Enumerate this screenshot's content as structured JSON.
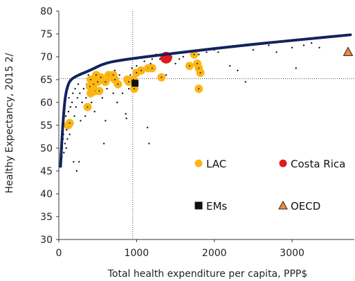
{
  "chart_data": {
    "type": "scatter",
    "xlabel": "Total health expenditure per capita, PPP$",
    "ylabel": "Healthy Expectancy, 2015 2/",
    "xlim": [
      0,
      3800
    ],
    "ylim": [
      30,
      80
    ],
    "x_ticks": [
      0,
      1000,
      2000,
      3000
    ],
    "y_ticks": [
      30,
      35,
      40,
      45,
      50,
      55,
      60,
      65,
      70,
      75,
      80
    ],
    "grid": false,
    "reference_lines": {
      "x": 950,
      "y": 65.2
    },
    "frontier": {
      "color": "#12235e",
      "points": [
        [
          22,
          46
        ],
        [
          40,
          52
        ],
        [
          60,
          57
        ],
        [
          80,
          61
        ],
        [
          110,
          63.5
        ],
        [
          150,
          65
        ],
        [
          250,
          66
        ],
        [
          400,
          67
        ],
        [
          600,
          68.7
        ],
        [
          900,
          69.5
        ],
        [
          1400,
          70.6
        ],
        [
          2000,
          71.8
        ],
        [
          2600,
          72.9
        ],
        [
          3200,
          73.9
        ],
        [
          3750,
          74.8
        ]
      ]
    },
    "series": [
      {
        "name": "LAC",
        "color": "#fbb614",
        "points": [
          [
            120,
            55
          ],
          [
            140,
            55.5
          ],
          [
            370,
            59
          ],
          [
            410,
            62
          ],
          [
            430,
            62.3
          ],
          [
            470,
            62.5
          ],
          [
            520,
            62.5
          ],
          [
            400,
            63.5
          ],
          [
            410,
            65
          ],
          [
            450,
            64
          ],
          [
            480,
            66
          ],
          [
            500,
            64.5
          ],
          [
            540,
            65.5
          ],
          [
            600,
            64.5
          ],
          [
            640,
            66
          ],
          [
            680,
            65.5
          ],
          [
            700,
            66
          ],
          [
            720,
            65
          ],
          [
            760,
            64
          ],
          [
            880,
            65
          ],
          [
            900,
            64.5
          ],
          [
            960,
            65
          ],
          [
            970,
            63
          ],
          [
            1000,
            66.5
          ],
          [
            1060,
            67
          ],
          [
            1150,
            67.5
          ],
          [
            1200,
            67.5
          ],
          [
            1320,
            65.5
          ],
          [
            1680,
            68
          ],
          [
            1740,
            70.5
          ],
          [
            1780,
            68.5
          ],
          [
            1800,
            67.5
          ],
          [
            1820,
            66.5
          ],
          [
            1800,
            63
          ]
        ]
      },
      {
        "name": "Costa Rica",
        "color": "#e01b1b",
        "points": [
          [
            1380,
            69.8
          ]
        ]
      },
      {
        "name": "EMs",
        "color": "#111111",
        "points": [
          [
            980,
            64.2
          ]
        ]
      },
      {
        "name": "OECD",
        "color": "#f5883c",
        "points": [
          [
            3720,
            71
          ]
        ]
      },
      {
        "name": "",
        "color": "#111111",
        "points": [
          [
            30,
            46
          ],
          [
            40,
            48
          ],
          [
            45,
            50
          ],
          [
            55,
            52
          ],
          [
            60,
            53
          ],
          [
            65,
            49
          ],
          [
            70,
            55
          ],
          [
            80,
            51
          ],
          [
            90,
            57
          ],
          [
            95,
            50
          ],
          [
            100,
            54
          ],
          [
            110,
            52
          ],
          [
            120,
            56
          ],
          [
            125,
            58
          ],
          [
            130,
            61
          ],
          [
            140,
            53
          ],
          [
            150,
            59
          ],
          [
            160,
            55
          ],
          [
            170,
            60
          ],
          [
            180,
            62
          ],
          [
            190,
            47
          ],
          [
            200,
            57
          ],
          [
            210,
            63
          ],
          [
            220,
            59
          ],
          [
            230,
            45
          ],
          [
            240,
            61
          ],
          [
            250,
            64
          ],
          [
            260,
            47
          ],
          [
            270,
            62
          ],
          [
            280,
            56
          ],
          [
            300,
            60
          ],
          [
            320,
            63
          ],
          [
            340,
            57
          ],
          [
            350,
            61
          ],
          [
            360,
            64
          ],
          [
            380,
            66
          ],
          [
            420,
            60
          ],
          [
            460,
            58
          ],
          [
            480,
            66
          ],
          [
            520,
            64
          ],
          [
            560,
            61
          ],
          [
            580,
            51
          ],
          [
            600,
            56
          ],
          [
            620,
            63
          ],
          [
            650,
            65
          ],
          [
            700,
            62
          ],
          [
            720,
            67
          ],
          [
            750,
            60
          ],
          [
            780,
            66
          ],
          [
            820,
            62
          ],
          [
            860,
            57.5
          ],
          [
            870,
            56.5
          ],
          [
            900,
            63
          ],
          [
            920,
            66
          ],
          [
            940,
            67.5
          ],
          [
            1000,
            68
          ],
          [
            1020,
            67
          ],
          [
            1060,
            67.5
          ],
          [
            1100,
            69
          ],
          [
            1140,
            54.5
          ],
          [
            1160,
            51
          ],
          [
            1180,
            68.5
          ],
          [
            1200,
            69.5
          ],
          [
            1250,
            70.5
          ],
          [
            1300,
            69.5
          ],
          [
            1380,
            66
          ],
          [
            1450,
            70
          ],
          [
            1500,
            68.5
          ],
          [
            1550,
            69.5
          ],
          [
            1600,
            70
          ],
          [
            1700,
            71
          ],
          [
            1760,
            70
          ],
          [
            1800,
            70.5
          ],
          [
            1900,
            71
          ],
          [
            2000,
            71.5
          ],
          [
            2050,
            71
          ],
          [
            2100,
            72
          ],
          [
            2200,
            68
          ],
          [
            2300,
            67
          ],
          [
            2400,
            64.5
          ],
          [
            2500,
            71.5
          ],
          [
            2700,
            72.5
          ],
          [
            2800,
            71
          ],
          [
            3000,
            72
          ],
          [
            3050,
            67.5
          ],
          [
            3150,
            72.5
          ],
          [
            3250,
            73
          ],
          [
            3350,
            72
          ]
        ]
      }
    ],
    "legend": [
      {
        "label": "LAC",
        "marker": "circle",
        "color": "#fbb614"
      },
      {
        "label": "Costa Rica",
        "marker": "circle",
        "color": "#e01b1b"
      },
      {
        "label": "EMs",
        "marker": "square",
        "color": "#111111"
      },
      {
        "label": "OECD",
        "marker": "triangle",
        "color": "#f5883c"
      }
    ]
  }
}
